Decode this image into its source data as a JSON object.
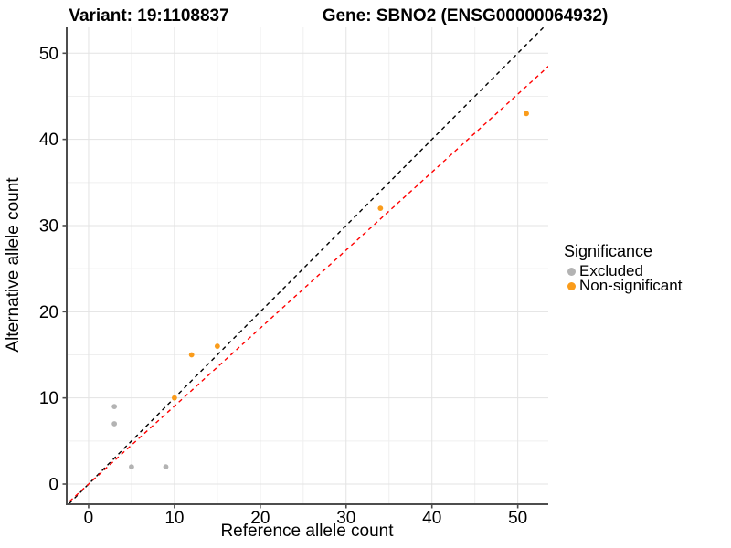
{
  "chart_data": {
    "type": "scatter",
    "titles": {
      "variant": "Variant: 19:1108837",
      "gene": "Gene: SBNO2 (ENSG00000064932)"
    },
    "xlabel": "Reference allele count",
    "ylabel": "Alternative allele count",
    "xlim": [
      -2.55,
      53.55
    ],
    "ylim": [
      -2.33,
      53.0
    ],
    "x_ticks": [
      0,
      10,
      20,
      30,
      40,
      50
    ],
    "y_ticks": [
      0,
      10,
      20,
      30,
      40,
      50
    ],
    "x_minor_ticks": [
      5,
      15,
      25,
      35,
      45
    ],
    "y_minor_ticks": [
      5,
      15,
      25,
      35,
      45
    ],
    "grid": true,
    "series": [
      {
        "name": "Excluded",
        "color": "#B3B3B3",
        "points": [
          [
            3,
            9
          ],
          [
            3,
            7
          ],
          [
            5,
            2
          ],
          [
            9,
            2
          ]
        ]
      },
      {
        "name": "Non-significant",
        "color": "#FA9C1B",
        "points": [
          [
            10,
            10
          ],
          [
            12,
            15
          ],
          [
            15,
            16
          ],
          [
            34,
            32
          ],
          [
            51,
            43
          ]
        ]
      }
    ],
    "ablines": [
      {
        "name": "identity-line",
        "slope": 1.0,
        "intercept": 0,
        "color": "#000000",
        "style": "dashed"
      },
      {
        "name": "fitted-line",
        "slope": 0.905,
        "intercept": 0,
        "color": "#FF0000",
        "style": "dashed"
      }
    ],
    "legend": {
      "title": "Significance",
      "position": "right",
      "entries": [
        {
          "label": "Excluded",
          "color": "#B3B3B3"
        },
        {
          "label": "Non-significant",
          "color": "#FA9C1B"
        }
      ]
    },
    "colors": {
      "grid_major": "#E3E3E3",
      "grid_minor": "#EFEFEF",
      "axis_line": "#4D4D4D",
      "text": "#000000"
    }
  }
}
